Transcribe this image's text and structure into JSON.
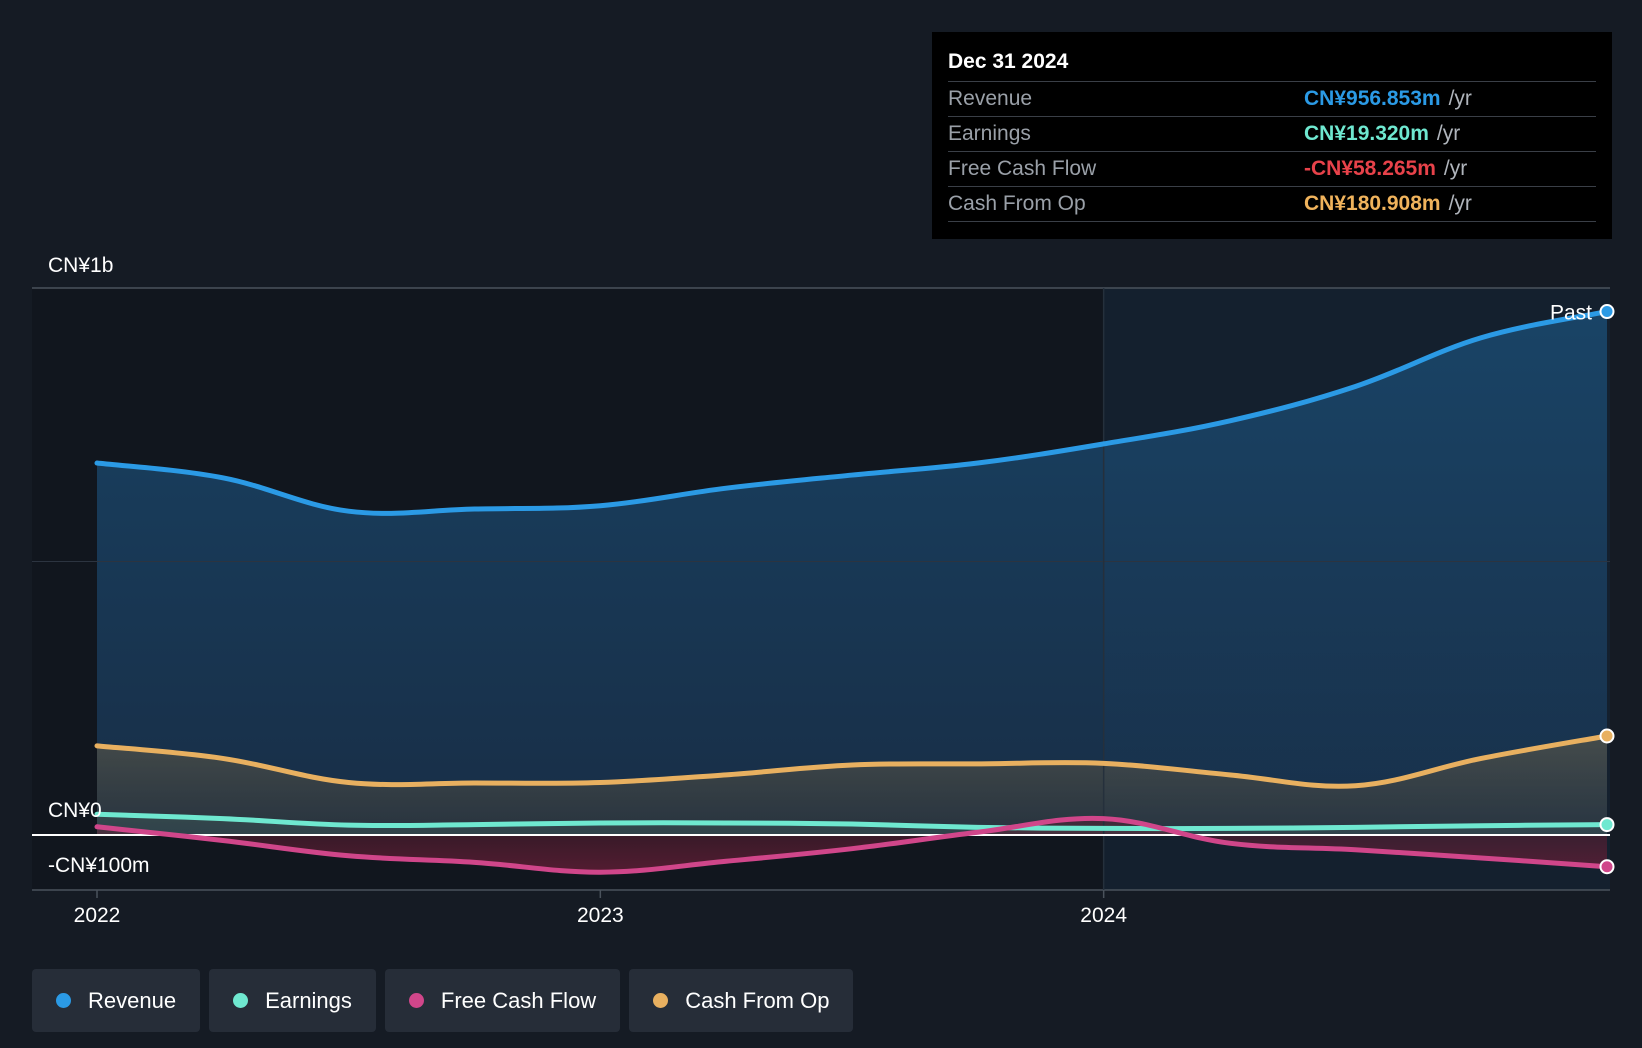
{
  "tooltip": {
    "date": "Dec 31 2024",
    "rows": [
      {
        "label": "Revenue",
        "value": "CN¥956.853m",
        "unit": "/yr",
        "color": "#2b9ae5"
      },
      {
        "label": "Earnings",
        "value": "CN¥19.320m",
        "unit": "/yr",
        "color": "#6fe8d0"
      },
      {
        "label": "Free Cash Flow",
        "value": "-CN¥58.265m",
        "unit": "/yr",
        "color": "#e8424a"
      },
      {
        "label": "Cash From Op",
        "value": "CN¥180.908m",
        "unit": "/yr",
        "color": "#f0b35c"
      }
    ]
  },
  "legend": [
    {
      "label": "Revenue",
      "color": "#2b9ae5"
    },
    {
      "label": "Earnings",
      "color": "#6fe8d0"
    },
    {
      "label": "Free Cash Flow",
      "color": "#d0468a"
    },
    {
      "label": "Cash From Op",
      "color": "#e8b060"
    }
  ],
  "chart_data": {
    "type": "area",
    "y_labels": {
      "top": "CN¥1b",
      "zero": "CN¥0",
      "bottom": "-CN¥100m"
    },
    "ylim": [
      -100,
      1000
    ],
    "xlim": [
      2022.0,
      2025.0
    ],
    "x_ticks": [
      {
        "value": 2022.0,
        "label": "2022"
      },
      {
        "value": 2023.0,
        "label": "2023"
      },
      {
        "value": 2024.0,
        "label": "2024"
      }
    ],
    "past_label": "Past",
    "past_start": 2024.0,
    "grid": true,
    "series": [
      {
        "name": "Revenue",
        "color": "#2b9ae5",
        "points": [
          [
            2022.0,
            680
          ],
          [
            2022.25,
            653
          ],
          [
            2022.5,
            592
          ],
          [
            2022.75,
            596
          ],
          [
            2023.0,
            602
          ],
          [
            2023.25,
            634
          ],
          [
            2023.5,
            658
          ],
          [
            2023.75,
            680
          ],
          [
            2024.0,
            715
          ],
          [
            2024.25,
            757
          ],
          [
            2024.5,
            820
          ],
          [
            2024.75,
            909
          ],
          [
            2025.0,
            957
          ]
        ]
      },
      {
        "name": "Cash From Op",
        "color": "#e8b060",
        "points": [
          [
            2022.0,
            163
          ],
          [
            2022.25,
            140
          ],
          [
            2022.5,
            96
          ],
          [
            2022.75,
            95
          ],
          [
            2023.0,
            96
          ],
          [
            2023.25,
            110
          ],
          [
            2023.5,
            128
          ],
          [
            2023.75,
            130
          ],
          [
            2024.0,
            131
          ],
          [
            2024.25,
            110
          ],
          [
            2024.5,
            90
          ],
          [
            2024.75,
            140
          ],
          [
            2025.0,
            181
          ]
        ]
      },
      {
        "name": "Earnings",
        "color": "#6fe8d0",
        "points": [
          [
            2022.0,
            38
          ],
          [
            2022.25,
            30
          ],
          [
            2022.5,
            18
          ],
          [
            2022.75,
            19
          ],
          [
            2023.0,
            22
          ],
          [
            2023.25,
            22
          ],
          [
            2023.5,
            20
          ],
          [
            2023.75,
            14
          ],
          [
            2024.0,
            12
          ],
          [
            2024.25,
            12
          ],
          [
            2024.5,
            14
          ],
          [
            2024.75,
            17
          ],
          [
            2025.0,
            19
          ]
        ]
      },
      {
        "name": "Free Cash Flow",
        "color": "#d0468a",
        "points": [
          [
            2022.0,
            15
          ],
          [
            2022.25,
            -10
          ],
          [
            2022.5,
            -38
          ],
          [
            2022.75,
            -50
          ],
          [
            2023.0,
            -68
          ],
          [
            2023.25,
            -48
          ],
          [
            2023.5,
            -25
          ],
          [
            2023.75,
            5
          ],
          [
            2024.0,
            30
          ],
          [
            2024.25,
            -15
          ],
          [
            2024.5,
            -27
          ],
          [
            2024.75,
            -42
          ],
          [
            2025.0,
            -58
          ]
        ]
      }
    ]
  }
}
